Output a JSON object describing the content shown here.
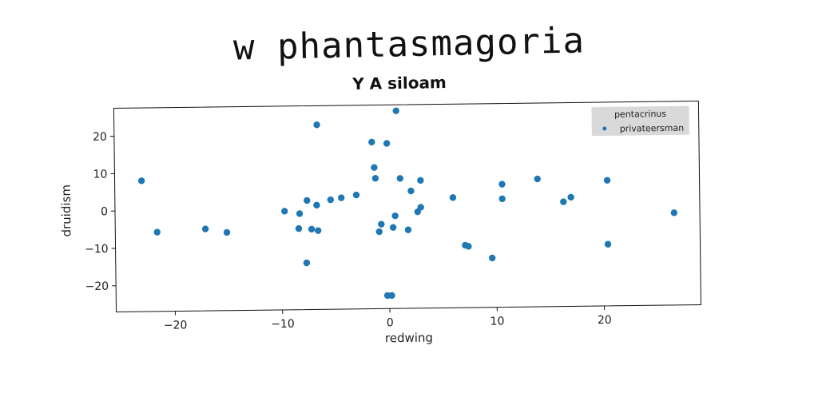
{
  "figure_title": "w phantasmagoria",
  "chart_data": {
    "type": "scatter",
    "title": "Y A siloam",
    "xlabel": "redwing",
    "ylabel": "druidism",
    "xlim": [
      -25.5,
      29
    ],
    "ylim": [
      -27,
      27.5
    ],
    "xticks": [
      -20,
      -10,
      0,
      10,
      20
    ],
    "yticks": [
      -20,
      -10,
      0,
      10,
      20
    ],
    "grid": false,
    "legend": {
      "title": "pentacrinus",
      "placement": "top-right"
    },
    "series": [
      {
        "name": "privateersman",
        "color": "#1f77b4",
        "points": [
          [
            -23.0,
            8.0
          ],
          [
            -21.6,
            -5.8
          ],
          [
            -17.1,
            -5.1
          ],
          [
            -15.1,
            -6.1
          ],
          [
            -9.7,
            -0.6
          ],
          [
            -8.3,
            -1.3
          ],
          [
            -8.4,
            -5.3
          ],
          [
            -7.6,
            2.2
          ],
          [
            -7.7,
            -14.5
          ],
          [
            -7.2,
            -5.5
          ],
          [
            -6.7,
            0.9
          ],
          [
            -6.6,
            -5.9
          ],
          [
            -6.6,
            22.4
          ],
          [
            -5.4,
            2.3
          ],
          [
            -4.4,
            2.8
          ],
          [
            -3.0,
            3.5
          ],
          [
            -1.5,
            17.6
          ],
          [
            -1.3,
            10.8
          ],
          [
            -1.2,
            7.9
          ],
          [
            -0.9,
            -6.4
          ],
          [
            -0.7,
            -4.4
          ],
          [
            -0.1,
            17.2
          ],
          [
            -0.2,
            -23.5
          ],
          [
            0.2,
            -23.5
          ],
          [
            0.4,
            -5.3
          ],
          [
            0.6,
            -2.2
          ],
          [
            0.8,
            25.9
          ],
          [
            1.1,
            7.8
          ],
          [
            1.8,
            -6.0
          ],
          [
            2.1,
            4.4
          ],
          [
            2.7,
            -1.2
          ],
          [
            3.0,
            7.2
          ],
          [
            3.0,
            0.0
          ],
          [
            6.0,
            2.5
          ],
          [
            7.1,
            -10.3
          ],
          [
            7.4,
            -10.6
          ],
          [
            9.6,
            -13.8
          ],
          [
            10.6,
            5.9
          ],
          [
            10.6,
            2.0
          ],
          [
            13.9,
            7.2
          ],
          [
            16.3,
            1.0
          ],
          [
            17.0,
            2.2
          ],
          [
            20.4,
            6.6
          ],
          [
            20.4,
            -10.5
          ],
          [
            26.6,
            -2.3
          ]
        ]
      }
    ]
  }
}
